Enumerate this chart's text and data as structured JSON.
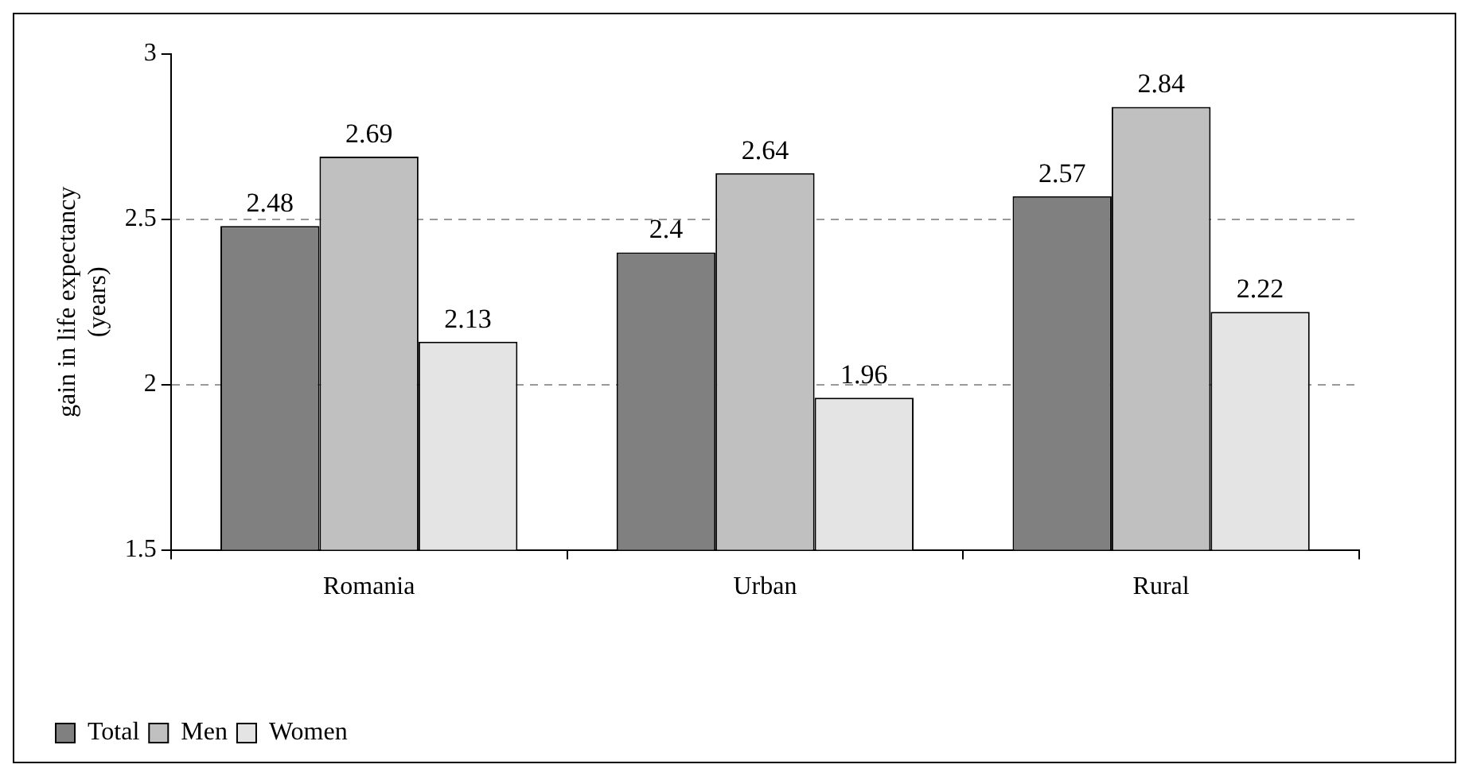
{
  "chart_data": {
    "type": "bar",
    "ylabel": "gain in life expectancy\n(years)",
    "categories": [
      "Romania",
      "Urban",
      "Rural"
    ],
    "series": [
      {
        "name": "Total",
        "color": "#808080",
        "values": [
          2.48,
          2.4,
          2.57
        ]
      },
      {
        "name": "Men",
        "color": "#c0c0c0",
        "values": [
          2.69,
          2.64,
          2.84
        ]
      },
      {
        "name": "Women",
        "color": "#e4e4e4",
        "values": [
          2.13,
          1.96,
          2.22
        ]
      }
    ],
    "ylim": [
      1.5,
      3
    ],
    "yticks": [
      1.5,
      2,
      2.5,
      3
    ],
    "grid": "y",
    "data_labels": true,
    "legend": "bottom left"
  }
}
